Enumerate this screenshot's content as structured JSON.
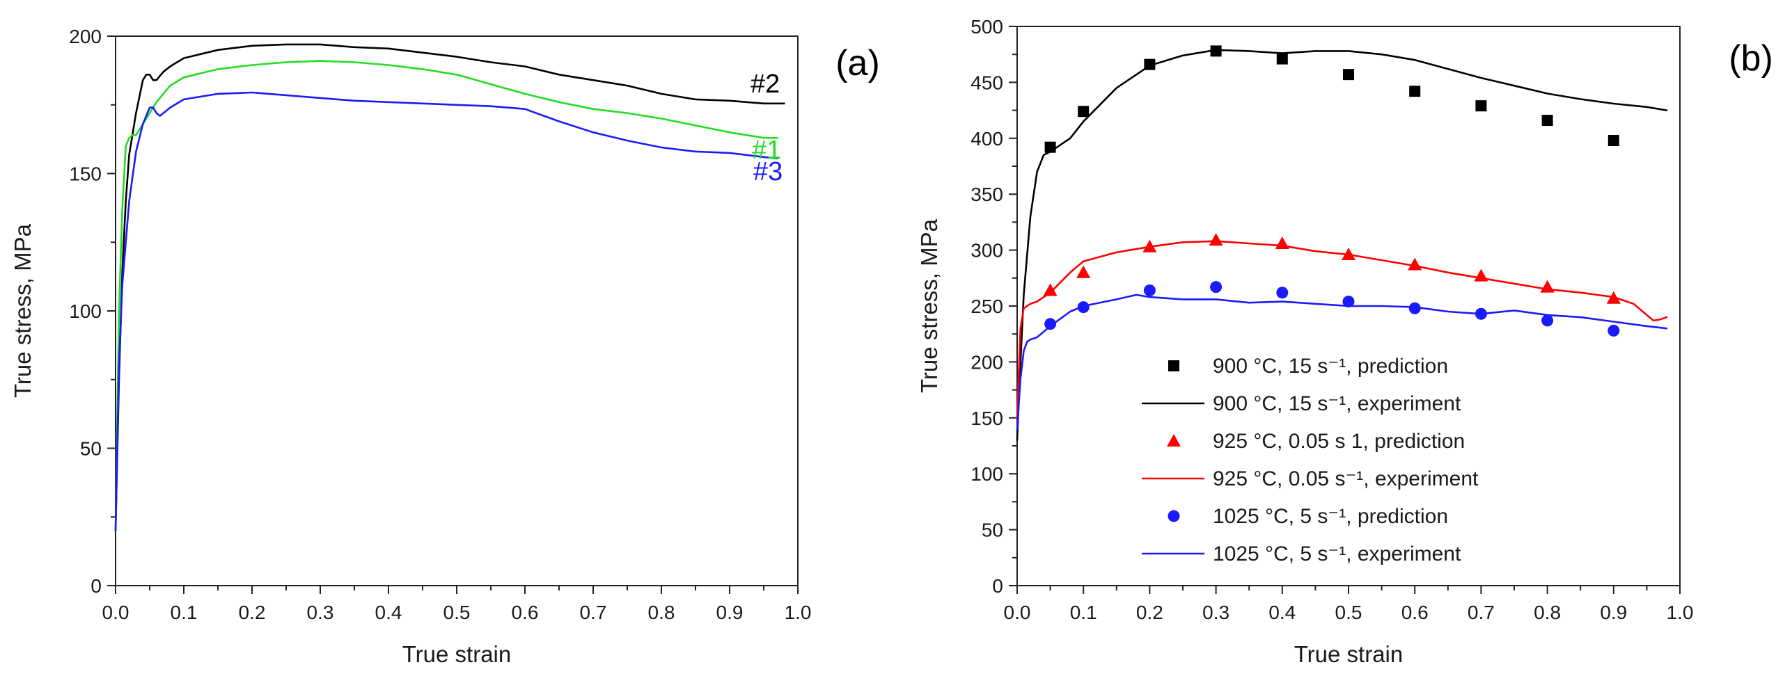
{
  "chart_data": [
    {
      "panel": "(a)",
      "type": "line",
      "xlabel": "True strain",
      "ylabel": "True stress, MPa",
      "xlim": [
        0,
        1.0
      ],
      "ylim": [
        0,
        200
      ],
      "xticks": [
        "0.0",
        "0.1",
        "0.2",
        "0.3",
        "0.4",
        "0.5",
        "0.6",
        "0.7",
        "0.8",
        "0.9",
        "1.0"
      ],
      "yticks": [
        "0",
        "50",
        "100",
        "150",
        "200"
      ],
      "grid": false,
      "series": [
        {
          "name": "#2",
          "color": "#000000",
          "x": [
            0.0,
            0.005,
            0.01,
            0.015,
            0.02,
            0.03,
            0.04,
            0.045,
            0.05,
            0.055,
            0.06,
            0.07,
            0.08,
            0.1,
            0.15,
            0.2,
            0.25,
            0.3,
            0.35,
            0.4,
            0.45,
            0.5,
            0.55,
            0.6,
            0.65,
            0.7,
            0.75,
            0.8,
            0.85,
            0.9,
            0.95,
            0.98
          ],
          "y": [
            20,
            75,
            115,
            140,
            157,
            172,
            184,
            186,
            186,
            184,
            184,
            187,
            189,
            192,
            195,
            196.5,
            197,
            197,
            196,
            195.5,
            194,
            192.5,
            190.5,
            189,
            186,
            184,
            182,
            179,
            177,
            176.5,
            175.5,
            175.5
          ]
        },
        {
          "name": "#1",
          "color": "#22dd22",
          "x": [
            0.0,
            0.005,
            0.01,
            0.015,
            0.02,
            0.025,
            0.03,
            0.04,
            0.05,
            0.06,
            0.08,
            0.1,
            0.15,
            0.2,
            0.25,
            0.3,
            0.35,
            0.4,
            0.45,
            0.5,
            0.55,
            0.6,
            0.65,
            0.7,
            0.75,
            0.8,
            0.85,
            0.9,
            0.95,
            0.97
          ],
          "y": [
            20,
            100,
            138,
            160,
            163,
            164,
            164,
            168,
            172,
            176,
            182,
            185,
            188,
            189.5,
            190.5,
            191,
            190.5,
            189.5,
            188,
            186,
            182.5,
            179,
            176,
            173.5,
            172,
            170,
            167.5,
            165,
            163,
            163
          ]
        },
        {
          "name": "#3",
          "color": "#1a1aff",
          "x": [
            0.0,
            0.005,
            0.01,
            0.02,
            0.03,
            0.04,
            0.05,
            0.055,
            0.06,
            0.065,
            0.07,
            0.08,
            0.1,
            0.15,
            0.2,
            0.25,
            0.3,
            0.35,
            0.4,
            0.45,
            0.5,
            0.55,
            0.6,
            0.65,
            0.7,
            0.75,
            0.8,
            0.85,
            0.9,
            0.95,
            0.97
          ],
          "y": [
            20,
            80,
            110,
            140,
            158,
            168,
            174,
            174,
            172,
            171,
            172,
            174,
            177,
            179,
            179.5,
            178.5,
            177.5,
            176.5,
            176,
            175.5,
            175,
            174.5,
            173.5,
            169,
            165,
            162,
            159.5,
            158,
            157.5,
            156,
            155.5
          ]
        }
      ],
      "annotations": [
        "#2",
        "#1",
        "#3"
      ]
    },
    {
      "panel": "(b)",
      "type": "line",
      "xlabel": "True strain",
      "ylabel": "True stress, MPa",
      "xlim": [
        0,
        1.0
      ],
      "ylim": [
        0,
        500
      ],
      "xticks": [
        "0.0",
        "0.1",
        "0.2",
        "0.3",
        "0.4",
        "0.5",
        "0.6",
        "0.7",
        "0.8",
        "0.9",
        "1.0"
      ],
      "yticks": [
        "0",
        "50",
        "100",
        "150",
        "200",
        "250",
        "300",
        "350",
        "400",
        "450",
        "500"
      ],
      "grid": false,
      "legend_position": "lower-center",
      "series": [
        {
          "name": "900 °C, 15 s⁻¹, prediction",
          "kind": "points",
          "marker": "square",
          "color": "#000000",
          "x": [
            0.05,
            0.1,
            0.2,
            0.3,
            0.4,
            0.5,
            0.6,
            0.7,
            0.8,
            0.9
          ],
          "y": [
            392,
            424,
            466,
            478,
            471,
            457,
            442,
            429,
            416,
            398
          ]
        },
        {
          "name": "900 °C, 15 s⁻¹, experiment",
          "kind": "line",
          "color": "#000000",
          "x": [
            0.0,
            0.005,
            0.01,
            0.02,
            0.03,
            0.04,
            0.05,
            0.06,
            0.08,
            0.1,
            0.15,
            0.2,
            0.25,
            0.3,
            0.35,
            0.4,
            0.45,
            0.5,
            0.55,
            0.6,
            0.65,
            0.7,
            0.75,
            0.8,
            0.85,
            0.9,
            0.95,
            0.98
          ],
          "y": [
            130,
            200,
            260,
            330,
            370,
            385,
            388,
            392,
            400,
            415,
            445,
            465,
            474,
            479,
            478,
            476,
            478,
            478,
            475,
            470,
            462,
            454,
            447,
            440,
            435,
            431,
            428,
            425
          ]
        },
        {
          "name": "925 °C, 0.05 s 1, prediction",
          "kind": "points",
          "marker": "triangle",
          "color": "#ff0000",
          "x": [
            0.05,
            0.1,
            0.2,
            0.3,
            0.4,
            0.5,
            0.6,
            0.7,
            0.8,
            0.9
          ],
          "y": [
            264,
            280,
            303,
            309,
            306,
            296,
            287,
            277,
            267,
            257
          ]
        },
        {
          "name": "925 °C, 0.05 s⁻¹, experiment",
          "kind": "line",
          "color": "#ff0000",
          "x": [
            0.0,
            0.005,
            0.01,
            0.02,
            0.03,
            0.05,
            0.08,
            0.1,
            0.15,
            0.2,
            0.25,
            0.3,
            0.35,
            0.4,
            0.45,
            0.5,
            0.55,
            0.6,
            0.65,
            0.7,
            0.75,
            0.8,
            0.85,
            0.9,
            0.93,
            0.95,
            0.96,
            0.97,
            0.98
          ],
          "y": [
            150,
            230,
            248,
            252,
            254,
            262,
            280,
            290,
            298,
            303,
            307,
            308,
            306,
            304,
            299,
            296,
            291,
            286,
            280,
            275,
            270,
            265,
            262,
            258,
            252,
            242,
            237,
            238,
            240
          ]
        },
        {
          "name": "1025 °C, 5 s⁻¹, prediction",
          "kind": "points",
          "marker": "circle",
          "color": "#1a1aff",
          "x": [
            0.05,
            0.1,
            0.2,
            0.3,
            0.4,
            0.5,
            0.6,
            0.7,
            0.8,
            0.9
          ],
          "y": [
            234,
            249,
            264,
            267,
            262,
            254,
            248,
            243,
            237,
            228
          ]
        },
        {
          "name": "1025 °C, 5 s⁻¹, experiment",
          "kind": "line",
          "color": "#1a1aff",
          "x": [
            0.0,
            0.005,
            0.01,
            0.015,
            0.02,
            0.03,
            0.05,
            0.08,
            0.1,
            0.15,
            0.18,
            0.2,
            0.25,
            0.3,
            0.35,
            0.4,
            0.45,
            0.5,
            0.55,
            0.6,
            0.65,
            0.7,
            0.75,
            0.8,
            0.85,
            0.9,
            0.95,
            0.98
          ],
          "y": [
            140,
            185,
            210,
            218,
            220,
            222,
            232,
            245,
            250,
            256,
            260,
            258,
            256,
            256,
            253,
            254,
            252,
            250,
            250,
            249,
            245,
            243,
            246,
            242,
            240,
            236,
            232,
            230
          ]
        }
      ],
      "legend": [
        "900 °C, 15 s⁻¹, prediction",
        "900 °C, 15 s⁻¹, experiment",
        "925 °C, 0.05 s 1, prediction",
        "925 °C, 0.05 s⁻¹, experiment",
        "1025 °C, 5 s⁻¹, prediction",
        "1025 °C, 5 s⁻¹, experiment"
      ]
    }
  ]
}
